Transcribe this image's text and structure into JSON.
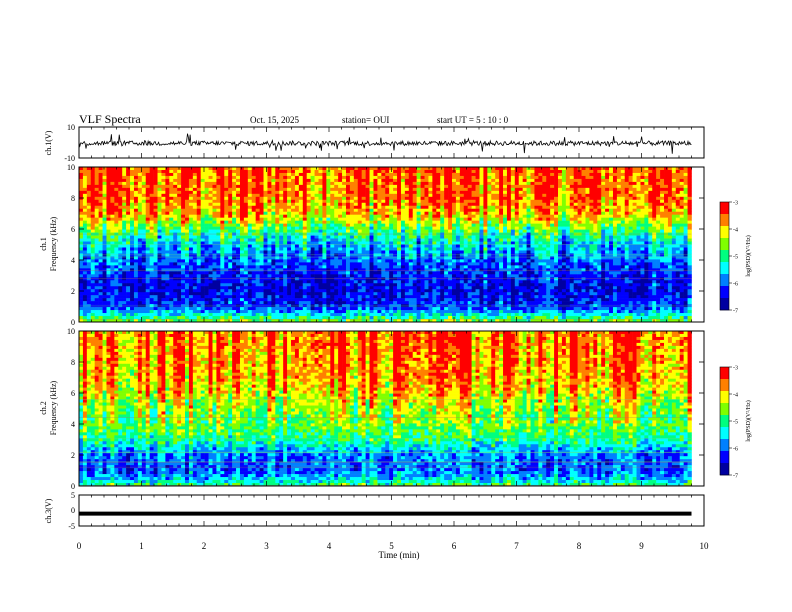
{
  "header": {
    "title": "VLF Spectra",
    "date": "Oct. 15, 2025",
    "station": "station= OUI",
    "start_ut": "start  UT =   5  : 10 : 0"
  },
  "colors": {
    "colormap": [
      "#0000a0",
      "#0000ff",
      "#0080ff",
      "#00ffff",
      "#00ff80",
      "#80ff00",
      "#ffff00",
      "#ff8000",
      "#ff0000"
    ],
    "trace": "#000000",
    "axes": "#000000"
  },
  "chart_data": [
    {
      "type": "line",
      "name": "ch1-waveform",
      "ylabel": "ch.1(V)",
      "ylim": [
        -10,
        10
      ],
      "y_ticks": [
        "10",
        "-10"
      ],
      "x": [
        0,
        10
      ],
      "approx_level": -0.5,
      "approx_fluctuation": 3
    },
    {
      "type": "heatmap",
      "name": "ch1-spectrogram",
      "ylabel": "ch.1\nFrequency (kHz)",
      "ylim": [
        0,
        10
      ],
      "xlim": [
        0,
        9.8
      ],
      "y_ticks": [
        "0",
        "2",
        "4",
        "6",
        "8",
        "10"
      ],
      "colorbar": {
        "label": "log(PSD)(V²/Hz)",
        "range": [
          -7,
          -3
        ],
        "ticks": [
          "-3",
          "-4",
          "-5",
          "-6",
          "-7"
        ]
      },
      "profile": {
        "freq_kHz": [
          0,
          0.5,
          1,
          2,
          3,
          4,
          5,
          6,
          7,
          8,
          10
        ],
        "log_psd": [
          -4.5,
          -5.5,
          -6.2,
          -6.5,
          -6.3,
          -6.0,
          -5.6,
          -4.8,
          -3.9,
          -3.6,
          -3.5
        ]
      }
    },
    {
      "type": "heatmap",
      "name": "ch2-spectrogram",
      "ylabel": "ch.2\nFrequency (kHz)",
      "ylim": [
        0,
        10
      ],
      "xlim": [
        0,
        9.8
      ],
      "y_ticks": [
        "0",
        "2",
        "4",
        "6",
        "8",
        "10"
      ],
      "colorbar": {
        "label": "log(PSD)(V²/Hz)",
        "range": [
          -7,
          -3
        ],
        "ticks": [
          "-3",
          "-4",
          "-5",
          "-6",
          "-7"
        ]
      },
      "profile": {
        "freq_kHz": [
          0,
          0.5,
          1,
          2,
          3,
          4,
          5,
          6,
          7,
          8,
          10
        ],
        "log_psd": [
          -4.8,
          -5.6,
          -6.0,
          -5.9,
          -5.0,
          -4.6,
          -4.4,
          -4.0,
          -3.7,
          -3.6,
          -3.5
        ]
      }
    },
    {
      "type": "line",
      "name": "ch3-waveform",
      "ylabel": "ch.3(V)",
      "ylim": [
        -5,
        5
      ],
      "y_ticks": [
        "5",
        "0",
        "-5"
      ],
      "x": [
        0,
        9.8
      ],
      "y": [
        -1,
        -1
      ]
    }
  ],
  "x_axis": {
    "label": "Time (min)",
    "ticks": [
      "0",
      "1",
      "2",
      "3",
      "4",
      "5",
      "6",
      "7",
      "8",
      "9",
      "10"
    ],
    "range": [
      0,
      10
    ]
  }
}
